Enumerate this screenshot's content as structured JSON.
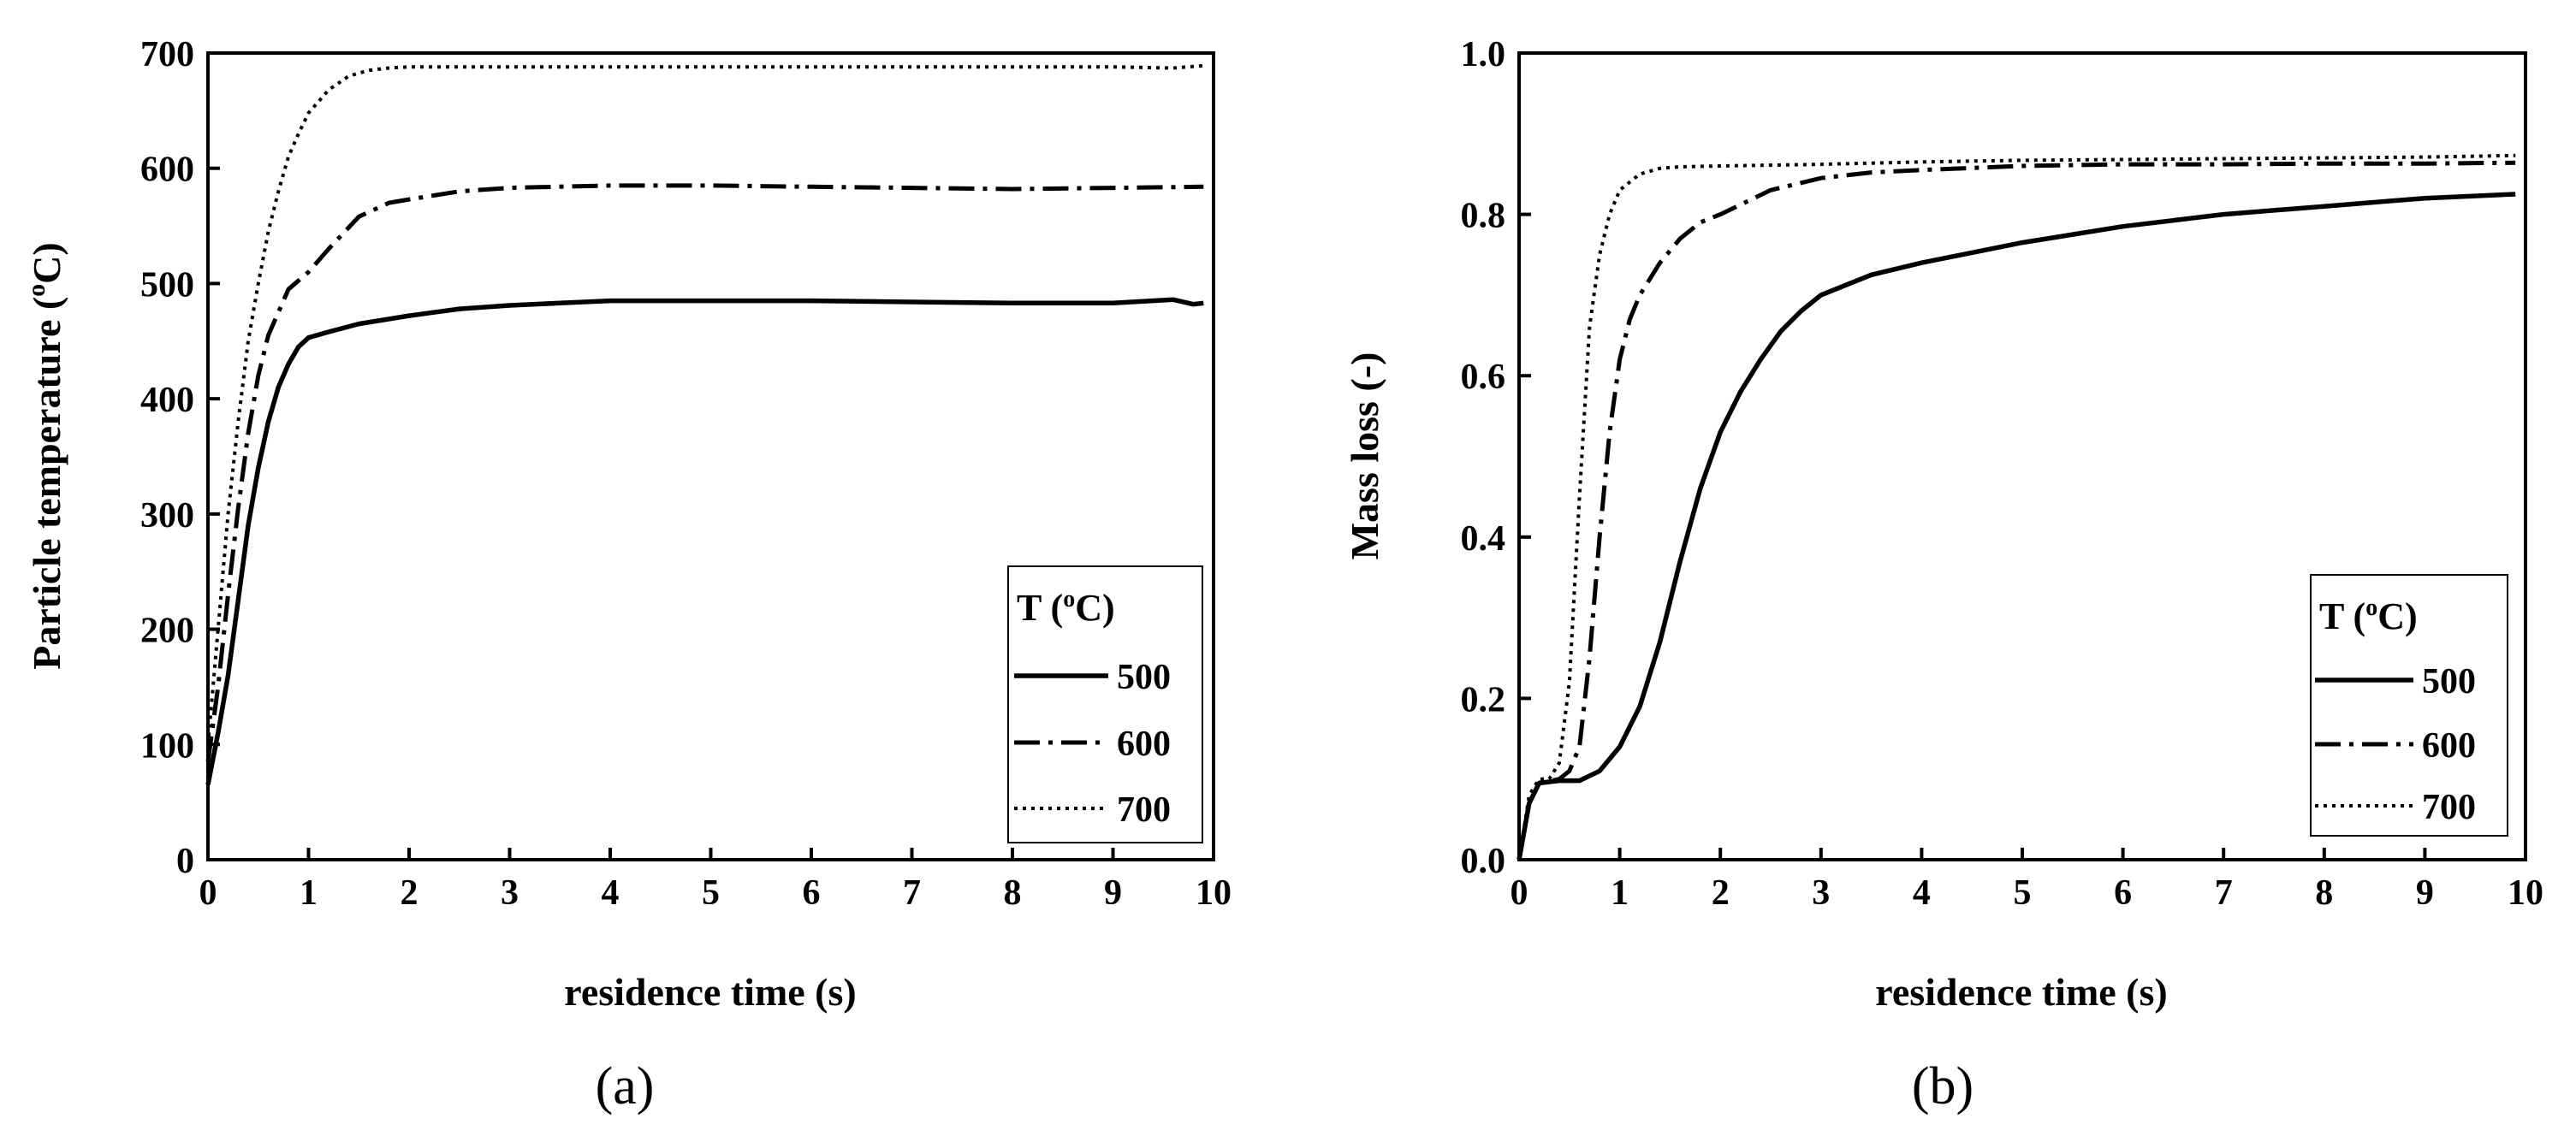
{
  "chart_data": [
    {
      "panel_label": "(a)",
      "type": "line",
      "xlabel": "residence time (s)",
      "ylabel": "Particle temperature (",
      "ylabel_sup": "o",
      "ylabel_tail": "C)",
      "xlim": [
        0,
        10
      ],
      "ylim": [
        0,
        700
      ],
      "x_ticks": [
        "0",
        "1",
        "2",
        "3",
        "4",
        "5",
        "6",
        "7",
        "8",
        "9",
        "10"
      ],
      "y_ticks": [
        "0",
        "100",
        "200",
        "300",
        "400",
        "500",
        "600",
        "700"
      ],
      "legend_title": "T (",
      "legend_title_sup": "o",
      "legend_title_tail": "C)",
      "legend_position": "bottom-right",
      "series": [
        {
          "name": "500",
          "style": "solid",
          "x": [
            0,
            0.1,
            0.2,
            0.3,
            0.4,
            0.5,
            0.6,
            0.7,
            0.8,
            0.9,
            1.0,
            1.2,
            1.5,
            2.0,
            2.5,
            3.0,
            3.5,
            4.0,
            5.0,
            6.0,
            7.0,
            8.0,
            9.0,
            9.6,
            9.8,
            9.9
          ],
          "y": [
            65,
            110,
            160,
            225,
            290,
            340,
            380,
            410,
            430,
            445,
            453,
            458,
            465,
            472,
            478,
            481,
            483,
            485,
            485,
            485,
            484,
            483,
            483,
            486,
            482,
            483
          ]
        },
        {
          "name": "600",
          "style": "dash-dot",
          "x": [
            0,
            0.1,
            0.2,
            0.3,
            0.4,
            0.5,
            0.6,
            0.8,
            1.0,
            1.2,
            1.5,
            1.8,
            2.0,
            2.5,
            3.0,
            4.0,
            5.0,
            6.0,
            7.0,
            8.0,
            9.0,
            9.9
          ],
          "y": [
            85,
            150,
            230,
            305,
            370,
            420,
            455,
            495,
            510,
            530,
            558,
            570,
            573,
            580,
            583,
            585,
            585,
            584,
            583,
            582,
            583,
            584
          ]
        },
        {
          "name": "700",
          "style": "dotted",
          "x": [
            0,
            0.1,
            0.2,
            0.3,
            0.4,
            0.5,
            0.6,
            0.7,
            0.8,
            0.9,
            1.0,
            1.2,
            1.4,
            1.6,
            1.8,
            2.0,
            3.0,
            4.0,
            5.0,
            6.0,
            7.0,
            8.0,
            9.0,
            9.6,
            9.9
          ],
          "y": [
            100,
            200,
            300,
            380,
            450,
            500,
            545,
            580,
            610,
            630,
            648,
            668,
            680,
            685,
            687,
            688,
            688,
            688,
            688,
            688,
            688,
            688,
            688,
            687,
            689
          ]
        }
      ]
    },
    {
      "panel_label": "(b)",
      "type": "line",
      "xlabel": "residence time (s)",
      "ylabel": "Mass loss (-)",
      "xlim": [
        0,
        10
      ],
      "ylim": [
        0,
        1.0
      ],
      "x_ticks": [
        "0",
        "1",
        "2",
        "3",
        "4",
        "5",
        "6",
        "7",
        "8",
        "9",
        "10"
      ],
      "y_ticks": [
        "0.0",
        "0.2",
        "0.4",
        "0.6",
        "0.8",
        "1.0"
      ],
      "legend_title": "T (",
      "legend_title_sup": "o",
      "legend_title_tail": "C)",
      "legend_position": "bottom-right",
      "series": [
        {
          "name": "500",
          "style": "solid",
          "x": [
            0,
            0.1,
            0.2,
            0.4,
            0.6,
            0.8,
            1.0,
            1.2,
            1.4,
            1.6,
            1.8,
            2.0,
            2.2,
            2.4,
            2.6,
            2.8,
            3.0,
            3.5,
            4.0,
            5.0,
            6.0,
            7.0,
            8.0,
            9.0,
            9.9
          ],
          "y": [
            0,
            0.07,
            0.095,
            0.098,
            0.098,
            0.11,
            0.14,
            0.19,
            0.27,
            0.37,
            0.46,
            0.53,
            0.58,
            0.62,
            0.655,
            0.68,
            0.7,
            0.725,
            0.74,
            0.765,
            0.785,
            0.8,
            0.81,
            0.82,
            0.825
          ]
        },
        {
          "name": "600",
          "style": "dash-dot",
          "x": [
            0,
            0.1,
            0.2,
            0.4,
            0.5,
            0.6,
            0.7,
            0.8,
            0.9,
            1.0,
            1.1,
            1.2,
            1.4,
            1.6,
            1.8,
            2.0,
            2.5,
            3.0,
            3.5,
            4.0,
            5.0,
            6.0,
            7.0,
            8.0,
            9.0,
            9.9
          ],
          "y": [
            0,
            0.07,
            0.095,
            0.1,
            0.11,
            0.14,
            0.25,
            0.4,
            0.53,
            0.62,
            0.67,
            0.7,
            0.74,
            0.77,
            0.79,
            0.8,
            0.83,
            0.845,
            0.852,
            0.855,
            0.86,
            0.862,
            0.862,
            0.863,
            0.863,
            0.864
          ]
        },
        {
          "name": "700",
          "style": "dotted",
          "x": [
            0,
            0.1,
            0.2,
            0.3,
            0.4,
            0.5,
            0.6,
            0.7,
            0.8,
            0.9,
            1.0,
            1.2,
            1.4,
            1.6,
            2.0,
            3.0,
            4.0,
            5.0,
            6.0,
            7.0,
            8.0,
            9.0,
            9.9
          ],
          "y": [
            0,
            0.08,
            0.1,
            0.1,
            0.12,
            0.22,
            0.45,
            0.66,
            0.75,
            0.8,
            0.83,
            0.85,
            0.857,
            0.859,
            0.86,
            0.862,
            0.865,
            0.867,
            0.868,
            0.869,
            0.87,
            0.871,
            0.873
          ]
        }
      ]
    }
  ]
}
